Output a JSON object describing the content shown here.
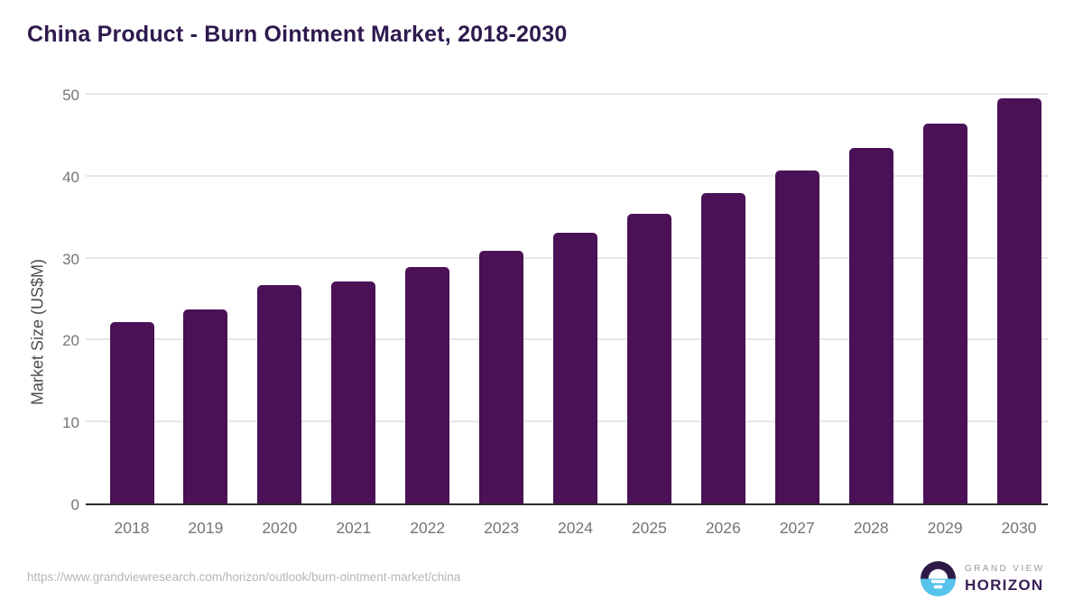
{
  "page": {
    "title": "China Product - Burn Ointment Market, 2018-2030"
  },
  "chart_data": {
    "type": "bar",
    "title": "China Product - Burn Ointment Market, 2018-2030",
    "categories": [
      "2018",
      "2019",
      "2020",
      "2021",
      "2022",
      "2023",
      "2024",
      "2025",
      "2026",
      "2027",
      "2028",
      "2029",
      "2030"
    ],
    "values": [
      22.1,
      23.7,
      26.7,
      27.1,
      28.9,
      30.8,
      33.0,
      35.4,
      37.9,
      40.6,
      43.4,
      46.4,
      49.5
    ],
    "xlabel": "",
    "ylabel": "Market Size (US$M)",
    "ylim": [
      0,
      50
    ],
    "yticks": [
      0,
      10,
      20,
      30,
      40,
      50
    ],
    "grid": true,
    "legend": false,
    "bar_color": "#4A1157"
  },
  "footer": {
    "source_url": "https://www.grandviewresearch.com/horizon/outlook/burn-ointment-market/china",
    "logo": {
      "top": "GRAND VIEW",
      "bottom": "HORIZON",
      "icon": "horizon-sun-icon"
    }
  },
  "colors": {
    "title": "#2E1A4E",
    "bar": "#4A1157",
    "gridline": "#E7E7E7",
    "axis_line": "#2B2B2B",
    "tick_label": "#757575",
    "axis_title": "#4D4D4D",
    "url_text": "#B6B6B6",
    "logo_blue": "#56C3EB",
    "logo_purple": "#2E1A47",
    "logo_text": "#3A2158",
    "background": "#FFFFFF"
  }
}
